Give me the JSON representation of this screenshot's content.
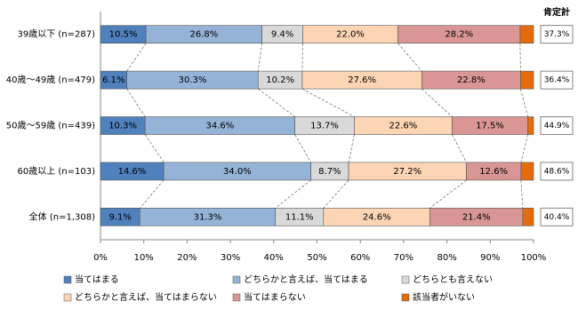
{
  "chart_data": {
    "type": "stacked-bar-horizontal",
    "categories": [
      "39歳以下 (n=287)",
      "40歳～49歳 (n=479)",
      "50歳～59歳 (n=439)",
      "60歳以上 (n=103)",
      "全体 (n=1,308)"
    ],
    "series": [
      {
        "name": "当てはまる",
        "color": "#4f81bd",
        "values": [
          10.5,
          6.1,
          10.3,
          14.6,
          9.1
        ],
        "value_labels": [
          "10.5%",
          "6.1%",
          "10.3%",
          "14.6%",
          "9.1%"
        ]
      },
      {
        "name": "どちらかと言えば、当てはまる",
        "color": "#95b3d7",
        "values": [
          26.8,
          30.3,
          34.6,
          34.0,
          31.3
        ],
        "value_labels": [
          "26.8%",
          "30.3%",
          "34.6%",
          "34.0%",
          "31.3%"
        ]
      },
      {
        "name": "どちらとも言えない",
        "color": "#d9d9d9",
        "values": [
          9.4,
          10.2,
          13.7,
          8.7,
          11.1
        ],
        "value_labels": [
          "9.4%",
          "10.2%",
          "13.7%",
          "8.7%",
          "11.1%"
        ]
      },
      {
        "name": "どちらかと言えば、当てはまらない",
        "color": "#fcd5b4",
        "values": [
          22.0,
          27.6,
          22.6,
          27.2,
          24.6
        ],
        "value_labels": [
          "22.0%",
          "27.6%",
          "22.6%",
          "27.2%",
          "24.6%"
        ]
      },
      {
        "name": "当てはまらない",
        "color": "#da9694",
        "values": [
          28.2,
          22.8,
          17.5,
          12.6,
          21.4
        ],
        "value_labels": [
          "28.2%",
          "22.8%",
          "17.5%",
          "12.6%",
          "21.4%"
        ]
      },
      {
        "name": "該当者がいない",
        "color": "#e46c0a",
        "values": [
          3.1,
          3.0,
          1.3,
          2.9,
          2.5
        ]
      }
    ],
    "positive_total": {
      "title": "肯定計",
      "values": [
        37.3,
        36.4,
        44.9,
        48.6,
        40.4
      ],
      "value_labels": [
        "37.3%",
        "36.4%",
        "44.9%",
        "48.6%",
        "40.4%"
      ]
    },
    "xlim": [
      0,
      100
    ],
    "xticks": [
      {
        "value": 0,
        "label": "0%"
      },
      {
        "value": 10,
        "label": "10%"
      },
      {
        "value": 20,
        "label": "20%"
      },
      {
        "value": 30,
        "label": "30%"
      },
      {
        "value": 40,
        "label": "40%"
      },
      {
        "value": 50,
        "label": "50%"
      },
      {
        "value": 60,
        "label": "60%"
      },
      {
        "value": 70,
        "label": "70%"
      },
      {
        "value": 80,
        "label": "80%"
      },
      {
        "value": 90,
        "label": "90%"
      },
      {
        "value": 100,
        "label": "100%"
      }
    ],
    "grid": false
  }
}
